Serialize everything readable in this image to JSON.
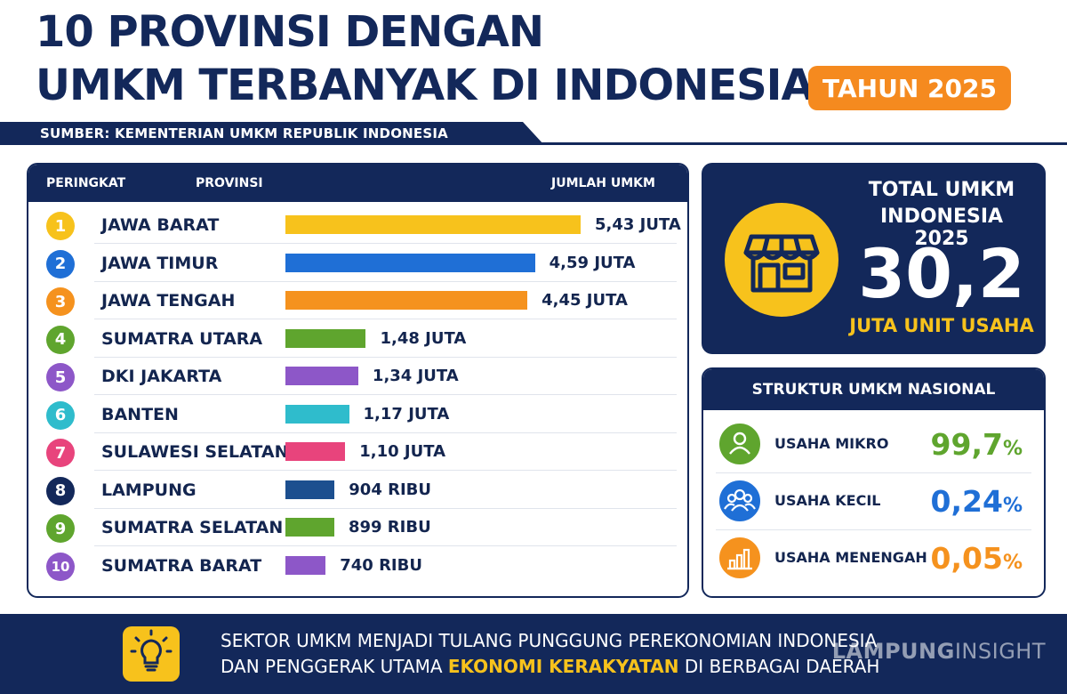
{
  "header": {
    "title_line1": "10 PROVINSI DENGAN",
    "title_line2": "UMKM TERBANYAK DI INDONESIA",
    "year_badge": "TAHUN 2025",
    "source": "SUMBER: KEMENTERIAN UMKM REPUBLIK INDONESIA"
  },
  "table": {
    "col_rank": "PERINGKAT",
    "col_province": "PROVINSI",
    "col_count": "JUMLAH UMKM"
  },
  "chart_data": {
    "type": "bar",
    "orientation": "horizontal",
    "unit": "juta UMKM",
    "categories": [
      "JAWA BARAT",
      "JAWA TIMUR",
      "JAWA TENGAH",
      "SUMATRA UTARA",
      "DKI JAKARTA",
      "BANTEN",
      "SULAWESI SELATAN",
      "LAMPUNG",
      "SUMATRA SELATAN",
      "SUMATRA BARAT"
    ],
    "values": [
      5.43,
      4.59,
      4.45,
      1.48,
      1.34,
      1.17,
      1.1,
      0.904,
      0.899,
      0.74
    ],
    "ranks": [
      "1",
      "2",
      "3",
      "4",
      "5",
      "6",
      "7",
      "8",
      "9",
      "10"
    ],
    "value_labels": [
      "5,43 JUTA",
      "4,59 JUTA",
      "4,45 JUTA",
      "1,48 JUTA",
      "1,34 JUTA",
      "1,17 JUTA",
      "1,10 JUTA",
      "904 RIBU",
      "899 RIBU",
      "740 RIBU"
    ],
    "colors": [
      "#f7c21c",
      "#1f6fd6",
      "#f5921e",
      "#5fa52e",
      "#8d57c8",
      "#2fbccc",
      "#e8447c",
      "#1c4f8f",
      "#5fa52e",
      "#8d57c8"
    ],
    "rank_colors": [
      "#f7c21c",
      "#1f6fd6",
      "#f5921e",
      "#5fa52e",
      "#8d57c8",
      "#2fbccc",
      "#e8447c",
      "#13285a",
      "#5fa52e",
      "#8d57c8"
    ]
  },
  "total": {
    "line1": "TOTAL UMKM",
    "line2": "INDONESIA 2025",
    "number": "30,2",
    "unit": "JUTA UNIT USAHA",
    "icon": "shop-icon"
  },
  "structure": {
    "title": "STRUKTUR UMKM NASIONAL",
    "items": [
      {
        "label": "USAHA MIKRO",
        "value": "99,7",
        "pct": "%",
        "color": "#5fa52e",
        "icon": "person-icon"
      },
      {
        "label": "USAHA KECIL",
        "value": "0,24",
        "pct": "%",
        "color": "#1f6fd6",
        "icon": "group-icon"
      },
      {
        "label": "USAHA MENENGAH",
        "value": "0,05",
        "pct": "%",
        "color": "#f5921e",
        "icon": "bar-chart-icon"
      }
    ]
  },
  "footer": {
    "line1": "SEKTOR UMKM MENJADI TULANG PUNGGUNG PEREKONOMIAN INDONESIA",
    "line2_pre": "DAN PENGGERAK UTAMA ",
    "line2_highlight": "EKONOMI KERAKYATAN",
    "line2_post": " DI BERBAGAI DAERAH",
    "icon": "lightbulb-icon"
  },
  "watermark": {
    "part1": "LAMPUNG",
    "part2": "INSIGHT"
  }
}
